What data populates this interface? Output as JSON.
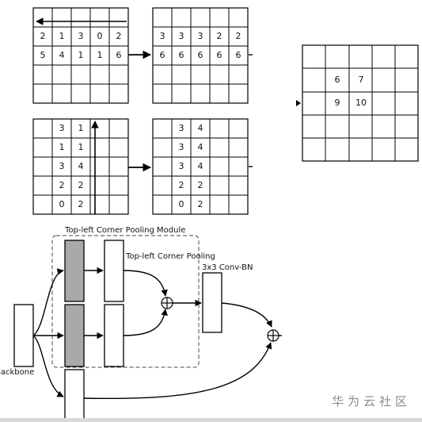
{
  "grids": {
    "top_left_input": [
      [
        "2",
        "1",
        "3",
        "0",
        "2"
      ],
      [
        "5",
        "4",
        "1",
        "1",
        "6"
      ],
      [
        "",
        "",
        "",
        "",
        ""
      ],
      [
        "",
        "",
        "",
        "",
        ""
      ]
    ],
    "top_left_output": [
      [
        "3",
        "3",
        "3",
        "2",
        "2"
      ],
      [
        "6",
        "6",
        "6",
        "6",
        "6"
      ],
      [
        "",
        "",
        "",
        "",
        ""
      ],
      [
        "",
        "",
        "",
        "",
        ""
      ]
    ],
    "left_top_input": [
      [
        "",
        "3",
        "1",
        "",
        ""
      ],
      [
        "",
        "1",
        "1",
        "",
        ""
      ],
      [
        "",
        "3",
        "4",
        "",
        ""
      ],
      [
        "",
        "2",
        "2",
        "",
        ""
      ],
      [
        "",
        "0",
        "2",
        "",
        ""
      ]
    ],
    "left_top_output": [
      [
        "",
        "3",
        "4",
        "",
        ""
      ],
      [
        "",
        "3",
        "4",
        "",
        ""
      ],
      [
        "",
        "3",
        "4",
        "",
        ""
      ],
      [
        "",
        "2",
        "2",
        "",
        ""
      ],
      [
        "",
        "0",
        "2",
        "",
        ""
      ]
    ],
    "result": [
      [
        "",
        "",
        "",
        "",
        ""
      ],
      [
        "",
        "6",
        "7",
        "",
        ""
      ],
      [
        "",
        "9",
        "10",
        "",
        ""
      ],
      [
        "",
        "",
        "",
        "",
        ""
      ],
      [
        "",
        "",
        "",
        "",
        ""
      ]
    ]
  },
  "labels": {
    "module_title": "Top-left Corner Pooling Module",
    "pooling_label": "Top-left Corner Pooling",
    "conv_label": "3x3 Conv-BN",
    "backbone_label": "Backbone"
  },
  "watermark": "华为云社区",
  "colors": {
    "gray_block": "#a9a9a9",
    "line": "#000000",
    "watermark": "#8a8a8a"
  }
}
